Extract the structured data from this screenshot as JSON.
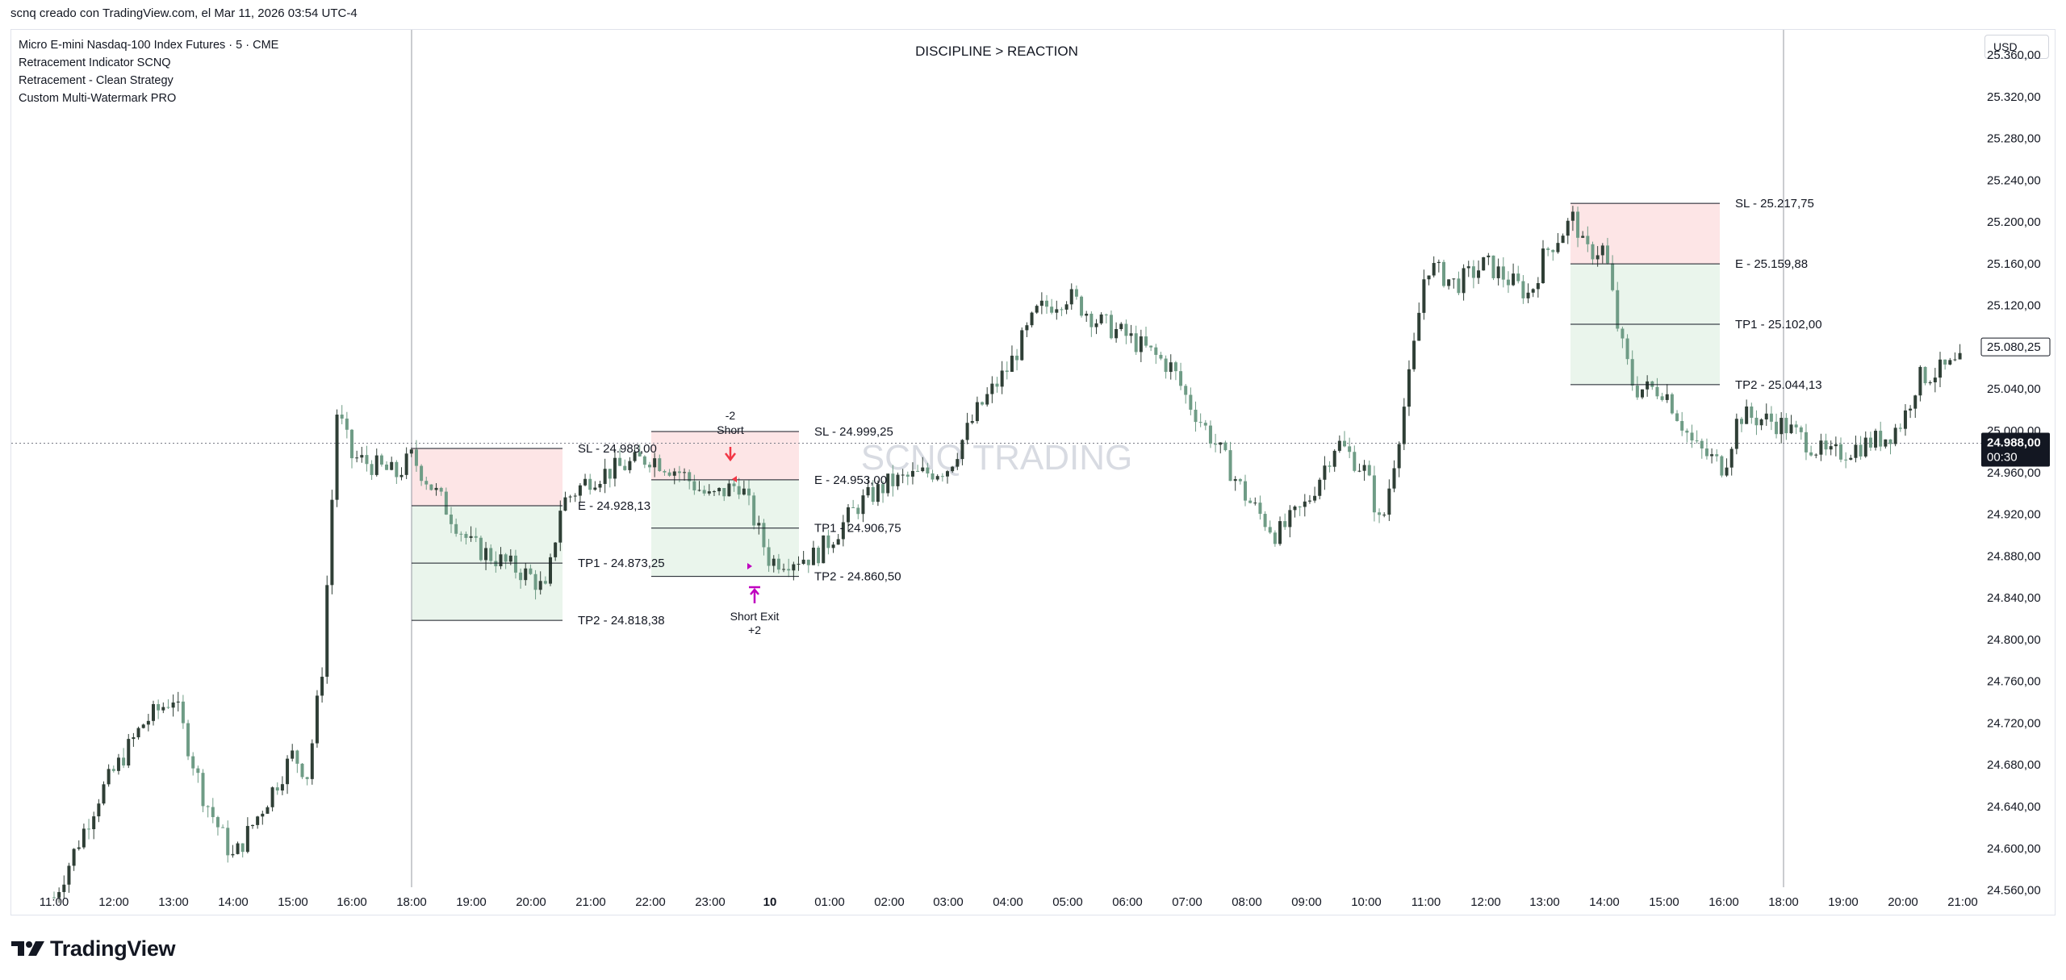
{
  "header": {
    "text": "scnq creado con TradingView.com, el Mar 11, 2026 03:54 UTC-4"
  },
  "legend": {
    "symbol_line": "Micro E-mini Nasdaq-100 Index Futures · 5 · CME",
    "indicators": [
      "Retracement Indicator SCNQ",
      "Retracement - Clean Strategy",
      "Custom Multi-Watermark PRO"
    ]
  },
  "chart_title": "DISCIPLINE > REACTION",
  "watermark": "SCNQ TRADING",
  "currency_button": "USD",
  "branding": {
    "name": "TradingView"
  },
  "colors": {
    "up_candle": "#2f3f36",
    "down_candle": "#6f9c86",
    "sl_zone": "#fde5e6",
    "tp_zone": "#eaf5ec",
    "level_line": "#131722",
    "short_arrow": "#f23645",
    "exit_marker": "#c000c0",
    "price_label_bg": "#131722",
    "price_label_text": "#ffffff"
  },
  "chart_data": {
    "type": "candlestick",
    "timeframe": "5",
    "symbol": "Micro E-mini Nasdaq-100 Index Futures",
    "exchange": "CME",
    "x_tick_labels": [
      "11:00",
      "12:00",
      "13:00",
      "14:00",
      "15:00",
      "16:00",
      "18:00",
      "19:00",
      "20:00",
      "21:00",
      "22:00",
      "23:00",
      "10",
      "01:00",
      "02:00",
      "03:00",
      "04:00",
      "05:00",
      "06:00",
      "07:00",
      "08:00",
      "09:00",
      "10:00",
      "11:00",
      "12:00",
      "13:00",
      "14:00",
      "15:00",
      "16:00",
      "18:00",
      "19:00",
      "20:00",
      "21:00"
    ],
    "y_tick_labels": [
      "25.360,00",
      "25.320,00",
      "25.280,00",
      "25.240,00",
      "25.200,00",
      "25.160,00",
      "25.120,00",
      "25.080,00",
      "25.040,00",
      "25.000,00",
      "24.960,00",
      "24.920,00",
      "24.880,00",
      "24.840,00",
      "24.800,00",
      "24.760,00",
      "24.720,00",
      "24.680,00",
      "24.640,00",
      "24.600,00",
      "24.560,00"
    ],
    "y_ticks": [
      25360,
      25320,
      25280,
      25240,
      25200,
      25160,
      25120,
      25080,
      25040,
      25000,
      24960,
      24920,
      24880,
      24840,
      24800,
      24760,
      24720,
      24680,
      24640,
      24600,
      24560
    ],
    "ylim": [
      24538,
      25384
    ],
    "last_price": 24988.0,
    "last_price_label": "24.988,00",
    "countdown_label": "00:30",
    "marked_price": 25080.25,
    "marked_price_label": "25.080,25",
    "price_path": [
      [
        "11:00",
        24553
      ],
      [
        "11:45",
        24650
      ],
      [
        "12:30",
        24720
      ],
      [
        "13:00",
        24745
      ],
      [
        "13:30",
        24650
      ],
      [
        "14:00",
        24590
      ],
      [
        "14:30",
        24640
      ],
      [
        "15:00",
        24690
      ],
      [
        "15:15",
        24670
      ],
      [
        "15:30",
        24775
      ],
      [
        "15:45",
        25020
      ],
      [
        "16:00",
        24975
      ],
      [
        "16:45",
        24958
      ],
      [
        "18:00",
        24975
      ],
      [
        "19:00",
        24890
      ],
      [
        "20:00",
        24860
      ],
      [
        "20:15",
        24845
      ],
      [
        "20:30",
        24930
      ],
      [
        "21:00",
        24955
      ],
      [
        "22:00",
        24975
      ],
      [
        "22:30",
        24960
      ],
      [
        "23:00",
        24935
      ],
      [
        "23:30",
        24950
      ],
      [
        "00:00",
        24875
      ],
      [
        "00:45",
        24880
      ],
      [
        "01:00",
        24895
      ],
      [
        "01:30",
        24930
      ],
      [
        "02:00",
        24950
      ],
      [
        "03:00",
        24965
      ],
      [
        "03:30",
        25020
      ],
      [
        "04:00",
        25060
      ],
      [
        "04:30",
        25115
      ],
      [
        "05:00",
        25130
      ],
      [
        "05:30",
        25105
      ],
      [
        "06:00",
        25090
      ],
      [
        "06:45",
        25060
      ],
      [
        "07:00",
        25030
      ],
      [
        "07:30",
        24985
      ],
      [
        "08:00",
        24935
      ],
      [
        "08:30",
        24900
      ],
      [
        "09:00",
        24930
      ],
      [
        "09:30",
        24990
      ],
      [
        "10:00",
        24960
      ],
      [
        "10:15",
        24905
      ],
      [
        "10:45",
        25060
      ],
      [
        "11:00",
        25160
      ],
      [
        "11:30",
        25140
      ],
      [
        "12:00",
        25160
      ],
      [
        "12:45",
        25130
      ],
      [
        "13:00",
        25170
      ],
      [
        "13:30",
        25205
      ],
      [
        "13:40",
        25170
      ],
      [
        "14:00",
        25175
      ],
      [
        "14:15",
        25090
      ],
      [
        "14:30",
        25040
      ],
      [
        "15:00",
        25040
      ],
      [
        "15:30",
        24985
      ],
      [
        "16:00",
        24965
      ],
      [
        "16:15",
        25015
      ],
      [
        "16:45",
        25010
      ],
      [
        "18:00",
        25005
      ],
      [
        "18:45",
        24975
      ],
      [
        "19:15",
        24985
      ],
      [
        "19:45",
        24995
      ],
      [
        "20:00",
        25010
      ],
      [
        "20:15",
        25050
      ],
      [
        "20:45",
        25060
      ],
      [
        "21:00",
        25065
      ]
    ],
    "trade_setups": [
      {
        "levels": [
          {
            "name": "SL",
            "label": "SL - 24.983,00",
            "value": 24983.0
          },
          {
            "name": "E",
            "label": "E - 24.928,13",
            "value": 24928.13
          },
          {
            "name": "TP1",
            "label": "TP1 - 24.873,25",
            "value": 24873.25
          },
          {
            "name": "TP2",
            "label": "TP2 - 24.818,38",
            "value": 24818.38
          }
        ]
      },
      {
        "levels": [
          {
            "name": "SL",
            "label": "SL - 24.999,25",
            "value": 24999.25
          },
          {
            "name": "E",
            "label": "E - 24.953,00",
            "value": 24953.0
          },
          {
            "name": "TP1",
            "label": "TP1 - 24.906,75",
            "value": 24906.75
          },
          {
            "name": "TP2",
            "label": "TP2 - 24.860,50",
            "value": 24860.5
          }
        ]
      },
      {
        "levels": [
          {
            "name": "SL",
            "label": "SL - 25.217,75",
            "value": 25217.75
          },
          {
            "name": "E",
            "label": "E - 25.159,88",
            "value": 25159.88
          },
          {
            "name": "TP1",
            "label": "TP1 - 25.102,00",
            "value": 25102.0
          },
          {
            "name": "TP2",
            "label": "TP2 - 25.044,13",
            "value": 25044.13
          }
        ]
      }
    ],
    "signals": [
      {
        "type": "short_entry",
        "label": "Short",
        "qty_label": "-2",
        "price": 24953.0
      },
      {
        "type": "short_exit",
        "label": "Short Exit",
        "qty_label": "+2",
        "price": 24860.5
      }
    ],
    "grid": false,
    "legend_position": "top-left"
  }
}
